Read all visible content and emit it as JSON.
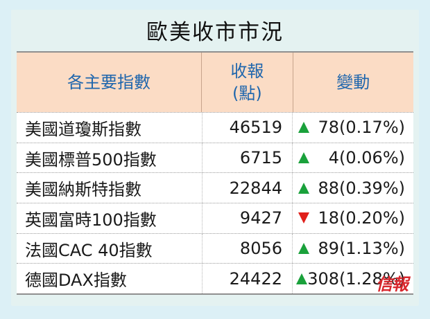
{
  "title": "歐美收市市況",
  "header": {
    "col1": "各主要指數",
    "col2_line1": "收報",
    "col2_line2": "(點)",
    "col3": "變動"
  },
  "rows": [
    {
      "name": "美國道瓊斯指數",
      "close": "46519",
      "direction": "up",
      "change": "78(0.17%)"
    },
    {
      "name": "美國標普500指數",
      "close": "6715",
      "direction": "up",
      "change": "4(0.06%)"
    },
    {
      "name": "美國納斯特指數",
      "close": "22844",
      "direction": "up",
      "change": "88(0.39%)"
    },
    {
      "name": "英國富時100指數",
      "close": "9427",
      "direction": "down",
      "change": "18(0.20%)"
    },
    {
      "name": "法國CAC 40指數",
      "close": "8056",
      "direction": "up",
      "change": "89(1.13%)"
    },
    {
      "name": "德國DAX指數",
      "close": "24422",
      "direction": "up",
      "change": "308(1.28%)"
    }
  ],
  "logo": "信報",
  "colors": {
    "up": "#1aa13b",
    "down": "#e0201b",
    "header_bg": "#fbdcc5",
    "header_text": "#1f66ad"
  }
}
